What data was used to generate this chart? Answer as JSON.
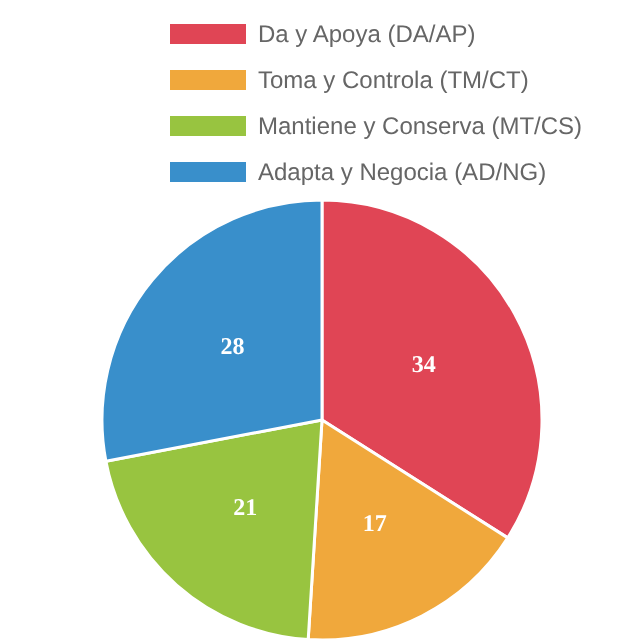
{
  "chart_data": {
    "type": "pie",
    "categories": [
      "Da y Apoya (DA/AP)",
      "Toma y Controla (TM/CT)",
      "Mantiene y Conserva (MT/CS)",
      "Adapta y Negocia (AD/NG)"
    ],
    "values": [
      34,
      17,
      21,
      28
    ],
    "colors": [
      "#e04555",
      "#f0a83c",
      "#98c440",
      "#398fcb"
    ],
    "data_labels": true,
    "legend": "top"
  }
}
